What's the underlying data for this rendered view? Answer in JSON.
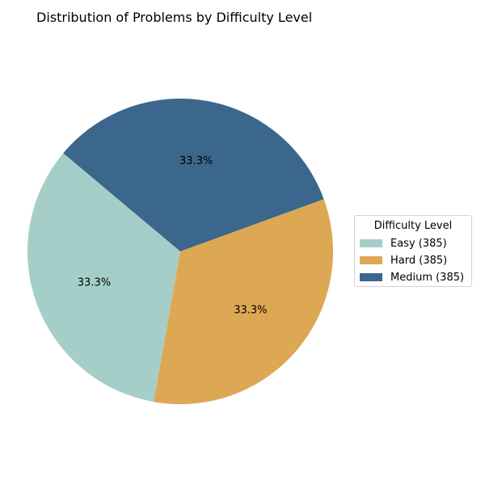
{
  "chart_data": {
    "type": "pie",
    "title": "Distribution of Problems by Difficulty Level",
    "legend_title": "Difficulty Level",
    "legend_position": "right",
    "slices": [
      {
        "category": "Easy",
        "legend_label": "Easy (385)",
        "value": 385,
        "pct_label": "33.3%",
        "color": "#a6cec8"
      },
      {
        "category": "Hard",
        "legend_label": "Hard (385)",
        "value": 385,
        "pct_label": "33.3%",
        "color": "#dda853"
      },
      {
        "category": "Medium",
        "legend_label": "Medium (385)",
        "value": 385,
        "pct_label": "33.3%",
        "color": "#3c678c"
      }
    ]
  }
}
